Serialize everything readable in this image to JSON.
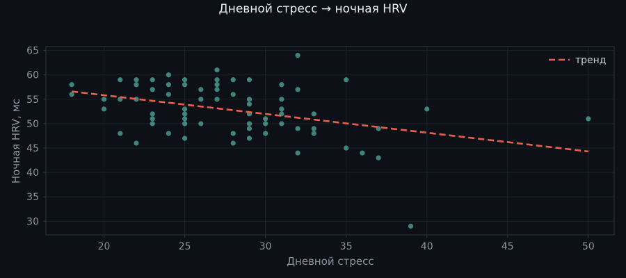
{
  "chart_data": {
    "type": "scatter",
    "title": "Дневной стресс → ночная HRV",
    "xlabel": "Дневной стресс",
    "ylabel": "Ночная HRV, мс",
    "xlim": [
      16.4,
      51.6
    ],
    "ylim": [
      27.2,
      65.8
    ],
    "xticks": [
      20,
      25,
      30,
      35,
      40,
      45,
      50
    ],
    "yticks": [
      30,
      35,
      40,
      45,
      50,
      55,
      60,
      65
    ],
    "grid": true,
    "legend_position": "top-right",
    "colors": {
      "background": "#0d1117",
      "points": "#4a9a8f",
      "trend": "#e8604c",
      "text": "#8b949e",
      "title": "#e6edf3",
      "grid": "#1c2129",
      "frame": "#30363d"
    },
    "series": [
      {
        "points": [
          [
            18,
            58
          ],
          [
            18,
            56
          ],
          [
            20,
            55
          ],
          [
            20,
            53
          ],
          [
            21,
            59
          ],
          [
            21,
            55
          ],
          [
            21,
            48
          ],
          [
            22,
            59
          ],
          [
            22,
            58
          ],
          [
            22,
            55
          ],
          [
            22,
            46
          ],
          [
            23,
            59
          ],
          [
            23,
            57
          ],
          [
            23,
            52
          ],
          [
            23,
            51
          ],
          [
            23,
            50
          ],
          [
            24,
            60
          ],
          [
            24,
            58
          ],
          [
            24,
            56
          ],
          [
            24,
            48
          ],
          [
            25,
            59
          ],
          [
            25,
            58
          ],
          [
            25,
            53
          ],
          [
            25,
            52
          ],
          [
            25,
            51
          ],
          [
            25,
            50
          ],
          [
            25,
            47
          ],
          [
            26,
            57
          ],
          [
            26,
            55
          ],
          [
            26,
            50
          ],
          [
            27,
            61
          ],
          [
            27,
            59
          ],
          [
            27,
            58
          ],
          [
            27,
            57
          ],
          [
            27,
            55
          ],
          [
            28,
            59
          ],
          [
            28,
            56
          ],
          [
            28,
            48
          ],
          [
            28,
            46
          ],
          [
            29,
            59
          ],
          [
            29,
            55
          ],
          [
            29,
            54
          ],
          [
            29,
            52
          ],
          [
            29,
            50
          ],
          [
            29,
            49
          ],
          [
            29,
            47
          ],
          [
            30,
            51
          ],
          [
            30,
            50
          ],
          [
            30,
            48
          ],
          [
            31,
            58
          ],
          [
            31,
            55
          ],
          [
            31,
            53
          ],
          [
            31,
            52
          ],
          [
            31,
            50
          ],
          [
            32,
            64
          ],
          [
            32,
            57
          ],
          [
            32,
            49
          ],
          [
            32,
            44
          ],
          [
            33,
            52
          ],
          [
            33,
            49
          ],
          [
            33,
            48
          ],
          [
            35,
            59
          ],
          [
            35,
            45
          ],
          [
            36,
            44
          ],
          [
            37,
            49
          ],
          [
            37,
            43
          ],
          [
            39,
            29
          ],
          [
            40,
            53
          ],
          [
            50,
            51
          ]
        ]
      },
      {
        "name": "тренд",
        "line": [
          [
            18,
            56.6
          ],
          [
            50,
            44.3
          ]
        ]
      }
    ]
  }
}
